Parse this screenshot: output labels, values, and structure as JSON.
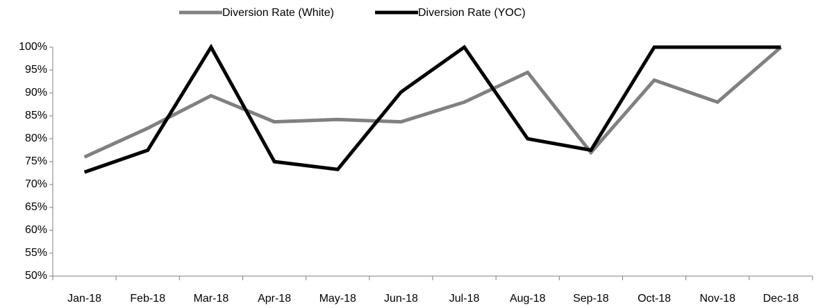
{
  "chart_data": {
    "type": "line",
    "categories": [
      "Jan-18",
      "Feb-18",
      "Mar-18",
      "Apr-18",
      "May-18",
      "Jun-18",
      "Jul-18",
      "Aug-18",
      "Sep-18",
      "Oct-18",
      "Nov-18",
      "Dec-18"
    ],
    "series": [
      {
        "name": "Diversion Rate (White)",
        "color": "#808080",
        "values": [
          76,
          82.3,
          89.4,
          83.7,
          84.2,
          83.7,
          88,
          94.5,
          77,
          92.8,
          88,
          100
        ]
      },
      {
        "name": "Diversion Rate (YOC)",
        "color": "#000000",
        "values": [
          72.7,
          77.5,
          100,
          75,
          73.3,
          90.2,
          100,
          80,
          77.5,
          100,
          100,
          100
        ]
      }
    ],
    "ylim": [
      50,
      100
    ],
    "yticks": [
      {
        "value": 50,
        "label": "50%"
      },
      {
        "value": 55,
        "label": "55%"
      },
      {
        "value": 60,
        "label": "60%"
      },
      {
        "value": 65,
        "label": "65%"
      },
      {
        "value": 70,
        "label": "70%"
      },
      {
        "value": 75,
        "label": "75%"
      },
      {
        "value": 80,
        "label": "80%"
      },
      {
        "value": 85,
        "label": "85%"
      },
      {
        "value": 90,
        "label": "90%"
      },
      {
        "value": 95,
        "label": "95%"
      },
      {
        "value": 100,
        "label": "100%"
      }
    ],
    "grid": false,
    "legend": "top"
  }
}
